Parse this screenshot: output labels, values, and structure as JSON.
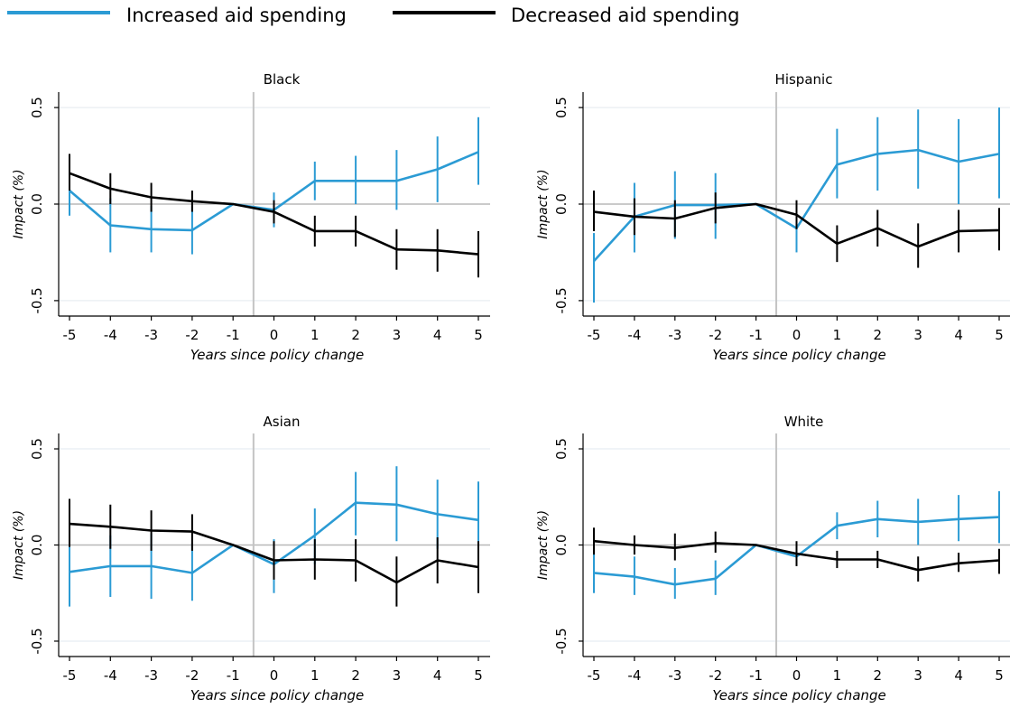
{
  "colors": {
    "increased": "#2b9bd4",
    "decreased": "#000000",
    "grid": "#e8eef2",
    "zero_line": "#b8b8b8",
    "policy_line": "#c4c4c4"
  },
  "legend": {
    "placement": "top-left",
    "items": [
      {
        "label": "Increased aid spending",
        "color": "#2b9bd4"
      },
      {
        "label": "Decreased aid spending",
        "color": "#000000"
      }
    ]
  },
  "chart_data": [
    {
      "type": "line",
      "title": "Black",
      "xlabel": "Years since policy change",
      "ylabel": "Impact (%)",
      "categories": [
        "-5",
        "-4",
        "-3",
        "-2",
        "-1",
        "0",
        "1",
        "2",
        "3",
        "4",
        "5"
      ],
      "yticks": [
        "-0.5",
        "0.0",
        "0.5"
      ],
      "ylim": [
        -0.58,
        0.58
      ],
      "policy_line_after": "-1",
      "series": [
        {
          "name": "Increased aid spending",
          "color": "#2b9bd4",
          "values": [
            0.07,
            -0.11,
            -0.13,
            -0.135,
            0.0,
            -0.03,
            0.12,
            0.12,
            0.12,
            0.18,
            0.27
          ],
          "lower": [
            -0.06,
            -0.25,
            -0.25,
            -0.26,
            0.0,
            -0.12,
            0.02,
            0.0,
            -0.03,
            0.01,
            0.1
          ],
          "upper": [
            0.2,
            0.03,
            -0.01,
            -0.01,
            0.0,
            0.06,
            0.22,
            0.25,
            0.28,
            0.35,
            0.45
          ]
        },
        {
          "name": "Decreased aid spending",
          "color": "#000000",
          "values": [
            0.16,
            0.08,
            0.035,
            0.015,
            0.0,
            -0.04,
            -0.14,
            -0.14,
            -0.235,
            -0.24,
            -0.26
          ],
          "lower": [
            0.07,
            0.0,
            -0.04,
            -0.04,
            0.0,
            -0.1,
            -0.22,
            -0.22,
            -0.34,
            -0.35,
            -0.38
          ],
          "upper": [
            0.26,
            0.16,
            0.11,
            0.07,
            0.0,
            0.02,
            -0.06,
            -0.06,
            -0.13,
            -0.13,
            -0.14
          ]
        }
      ]
    },
    {
      "type": "line",
      "title": "Hispanic",
      "xlabel": "Years since policy change",
      "ylabel": "Impact (%)",
      "categories": [
        "-5",
        "-4",
        "-3",
        "-2",
        "-1",
        "0",
        "1",
        "2",
        "3",
        "4",
        "5"
      ],
      "yticks": [
        "-0.5",
        "0.0",
        "0.5"
      ],
      "ylim": [
        -0.58,
        0.58
      ],
      "policy_line_after": "-1",
      "series": [
        {
          "name": "Increased aid spending",
          "color": "#2b9bd4",
          "values": [
            -0.295,
            -0.065,
            -0.005,
            -0.005,
            0.0,
            -0.125,
            0.205,
            0.26,
            0.28,
            0.22,
            0.26
          ],
          "lower": [
            -0.51,
            -0.25,
            -0.18,
            -0.18,
            0.0,
            -0.25,
            0.03,
            0.07,
            0.08,
            0.0,
            0.03
          ],
          "upper": [
            -0.15,
            0.11,
            0.17,
            0.16,
            0.0,
            -0.02,
            0.39,
            0.45,
            0.49,
            0.44,
            0.5
          ]
        },
        {
          "name": "Decreased aid spending",
          "color": "#000000",
          "values": [
            -0.04,
            -0.065,
            -0.075,
            -0.02,
            0.0,
            -0.055,
            -0.205,
            -0.125,
            -0.22,
            -0.14,
            -0.135
          ],
          "lower": [
            -0.14,
            -0.16,
            -0.17,
            -0.1,
            0.0,
            -0.13,
            -0.3,
            -0.22,
            -0.33,
            -0.25,
            -0.24
          ],
          "upper": [
            0.07,
            0.03,
            0.02,
            0.06,
            0.0,
            0.02,
            -0.11,
            -0.03,
            -0.1,
            -0.03,
            -0.02
          ]
        }
      ]
    },
    {
      "type": "line",
      "title": "Asian",
      "xlabel": "Years since policy change",
      "ylabel": "Impact (%)",
      "categories": [
        "-5",
        "-4",
        "-3",
        "-2",
        "-1",
        "0",
        "1",
        "2",
        "3",
        "4",
        "5"
      ],
      "yticks": [
        "-0.5",
        "0.0",
        "0.5"
      ],
      "ylim": [
        -0.58,
        0.58
      ],
      "policy_line_after": "-1",
      "series": [
        {
          "name": "Increased aid spending",
          "color": "#2b9bd4",
          "values": [
            -0.14,
            -0.11,
            -0.11,
            -0.145,
            0.0,
            -0.1,
            0.05,
            0.22,
            0.21,
            0.16,
            0.13
          ],
          "lower": [
            -0.32,
            -0.27,
            -0.28,
            -0.29,
            0.0,
            -0.25,
            -0.1,
            0.05,
            0.02,
            -0.02,
            -0.06
          ],
          "upper": [
            0.01,
            0.05,
            0.06,
            0.01,
            0.0,
            0.03,
            0.19,
            0.38,
            0.41,
            0.34,
            0.33
          ]
        },
        {
          "name": "Decreased aid spending",
          "color": "#000000",
          "values": [
            0.11,
            0.095,
            0.075,
            0.07,
            0.0,
            -0.08,
            -0.075,
            -0.08,
            -0.195,
            -0.08,
            -0.115
          ],
          "lower": [
            -0.01,
            -0.02,
            -0.03,
            -0.03,
            0.0,
            -0.18,
            -0.18,
            -0.19,
            -0.32,
            -0.2,
            -0.25
          ],
          "upper": [
            0.24,
            0.21,
            0.18,
            0.16,
            0.0,
            0.02,
            0.03,
            0.03,
            -0.06,
            0.04,
            0.02
          ]
        }
      ]
    },
    {
      "type": "line",
      "title": "White",
      "xlabel": "Years since policy change",
      "ylabel": "Impact (%)",
      "categories": [
        "-5",
        "-4",
        "-3",
        "-2",
        "-1",
        "0",
        "1",
        "2",
        "3",
        "4",
        "5"
      ],
      "yticks": [
        "-0.5",
        "0.0",
        "0.5"
      ],
      "ylim": [
        -0.58,
        0.58
      ],
      "policy_line_after": "-1",
      "series": [
        {
          "name": "Increased aid spending",
          "color": "#2b9bd4",
          "values": [
            -0.145,
            -0.165,
            -0.205,
            -0.175,
            0.0,
            -0.06,
            0.1,
            0.135,
            0.12,
            0.135,
            0.145
          ],
          "lower": [
            -0.25,
            -0.26,
            -0.28,
            -0.26,
            0.0,
            -0.1,
            0.03,
            0.04,
            0.0,
            0.02,
            0.01
          ],
          "upper": [
            -0.02,
            -0.06,
            -0.12,
            -0.08,
            0.0,
            -0.02,
            0.17,
            0.23,
            0.24,
            0.26,
            0.28
          ]
        },
        {
          "name": "Decreased aid spending",
          "color": "#000000",
          "values": [
            0.02,
            0.0,
            -0.015,
            0.01,
            0.0,
            -0.045,
            -0.075,
            -0.075,
            -0.13,
            -0.095,
            -0.08
          ],
          "lower": [
            -0.05,
            -0.05,
            -0.08,
            -0.04,
            0.0,
            -0.11,
            -0.12,
            -0.12,
            -0.19,
            -0.14,
            -0.15
          ],
          "upper": [
            0.09,
            0.05,
            0.06,
            0.07,
            0.0,
            0.02,
            -0.03,
            -0.03,
            -0.06,
            -0.04,
            -0.02
          ]
        }
      ]
    }
  ]
}
